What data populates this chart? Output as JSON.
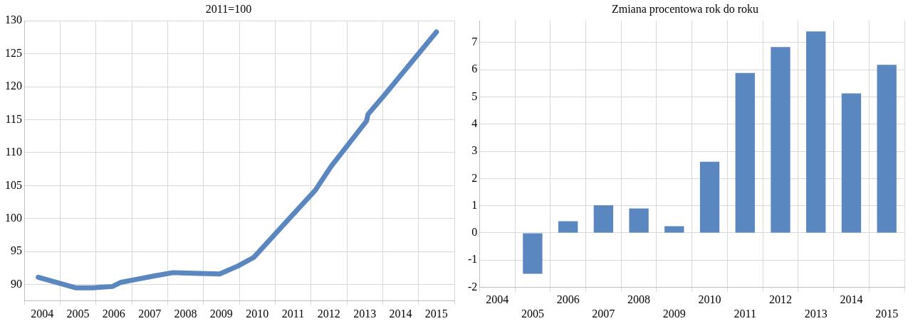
{
  "chart_data": [
    {
      "type": "line",
      "title": "2011=100",
      "color": "#5b87c0",
      "x": [
        2004.39,
        2005.43,
        2005.9,
        2006.46,
        2006.68,
        2007.15,
        2007.63,
        2008.15,
        2009.45,
        2009.96,
        2010.4,
        2011.26,
        2012.12,
        2012.56,
        2013.55,
        2013.59,
        2014.03,
        2015.5
      ],
      "values": [
        91.1,
        89.5,
        89.5,
        89.7,
        90.3,
        90.8,
        91.3,
        91.8,
        91.6,
        92.8,
        94.1,
        99.2,
        104.3,
        107.9,
        114.8,
        115.8,
        118.6,
        128.3
      ],
      "xlim": [
        2004,
        2016
      ],
      "xticks": [
        {
          "value": 2004,
          "label": null
        },
        {
          "value": 2004.5,
          "label": "2004"
        },
        {
          "value": 2005,
          "label": null
        },
        {
          "value": 2005.5,
          "label": "2005"
        },
        {
          "value": 2006,
          "label": null
        },
        {
          "value": 2006.5,
          "label": "2006"
        },
        {
          "value": 2007,
          "label": null
        },
        {
          "value": 2007.5,
          "label": "2007"
        },
        {
          "value": 2008,
          "label": null
        },
        {
          "value": 2008.5,
          "label": "2008"
        },
        {
          "value": 2009,
          "label": null
        },
        {
          "value": 2009.5,
          "label": "2009"
        },
        {
          "value": 2010,
          "label": null
        },
        {
          "value": 2010.5,
          "label": "2010"
        },
        {
          "value": 2011,
          "label": null
        },
        {
          "value": 2011.5,
          "label": "2011"
        },
        {
          "value": 2012,
          "label": null
        },
        {
          "value": 2012.5,
          "label": "2012"
        },
        {
          "value": 2013,
          "label": null
        },
        {
          "value": 2013.5,
          "label": "2013"
        },
        {
          "value": 2014,
          "label": null
        },
        {
          "value": 2014.5,
          "label": "2014"
        },
        {
          "value": 2015,
          "label": null
        },
        {
          "value": 2015.5,
          "label": "2015"
        },
        {
          "value": 2016,
          "label": null
        }
      ],
      "ylim": [
        87.5,
        130
      ],
      "yticks": [
        90,
        95,
        100,
        105,
        110,
        115,
        120,
        125,
        130
      ],
      "grid": true
    },
    {
      "type": "bar",
      "title": "Zmiana procentowa rok do roku",
      "color": "#5b87c0",
      "categories": [
        "2004",
        "2005",
        "2006",
        "2007",
        "2008",
        "2009",
        "2010",
        "2011",
        "2012",
        "2013",
        "2014",
        "2015"
      ],
      "values": [
        null,
        -1.5,
        0.43,
        1.02,
        0.9,
        0.25,
        2.62,
        5.88,
        6.83,
        7.41,
        5.13,
        6.18
      ],
      "ylim": [
        -2,
        7.8
      ],
      "yticks": [
        -2,
        -1,
        0,
        1,
        2,
        3,
        4,
        5,
        6,
        7
      ],
      "grid": true
    }
  ]
}
